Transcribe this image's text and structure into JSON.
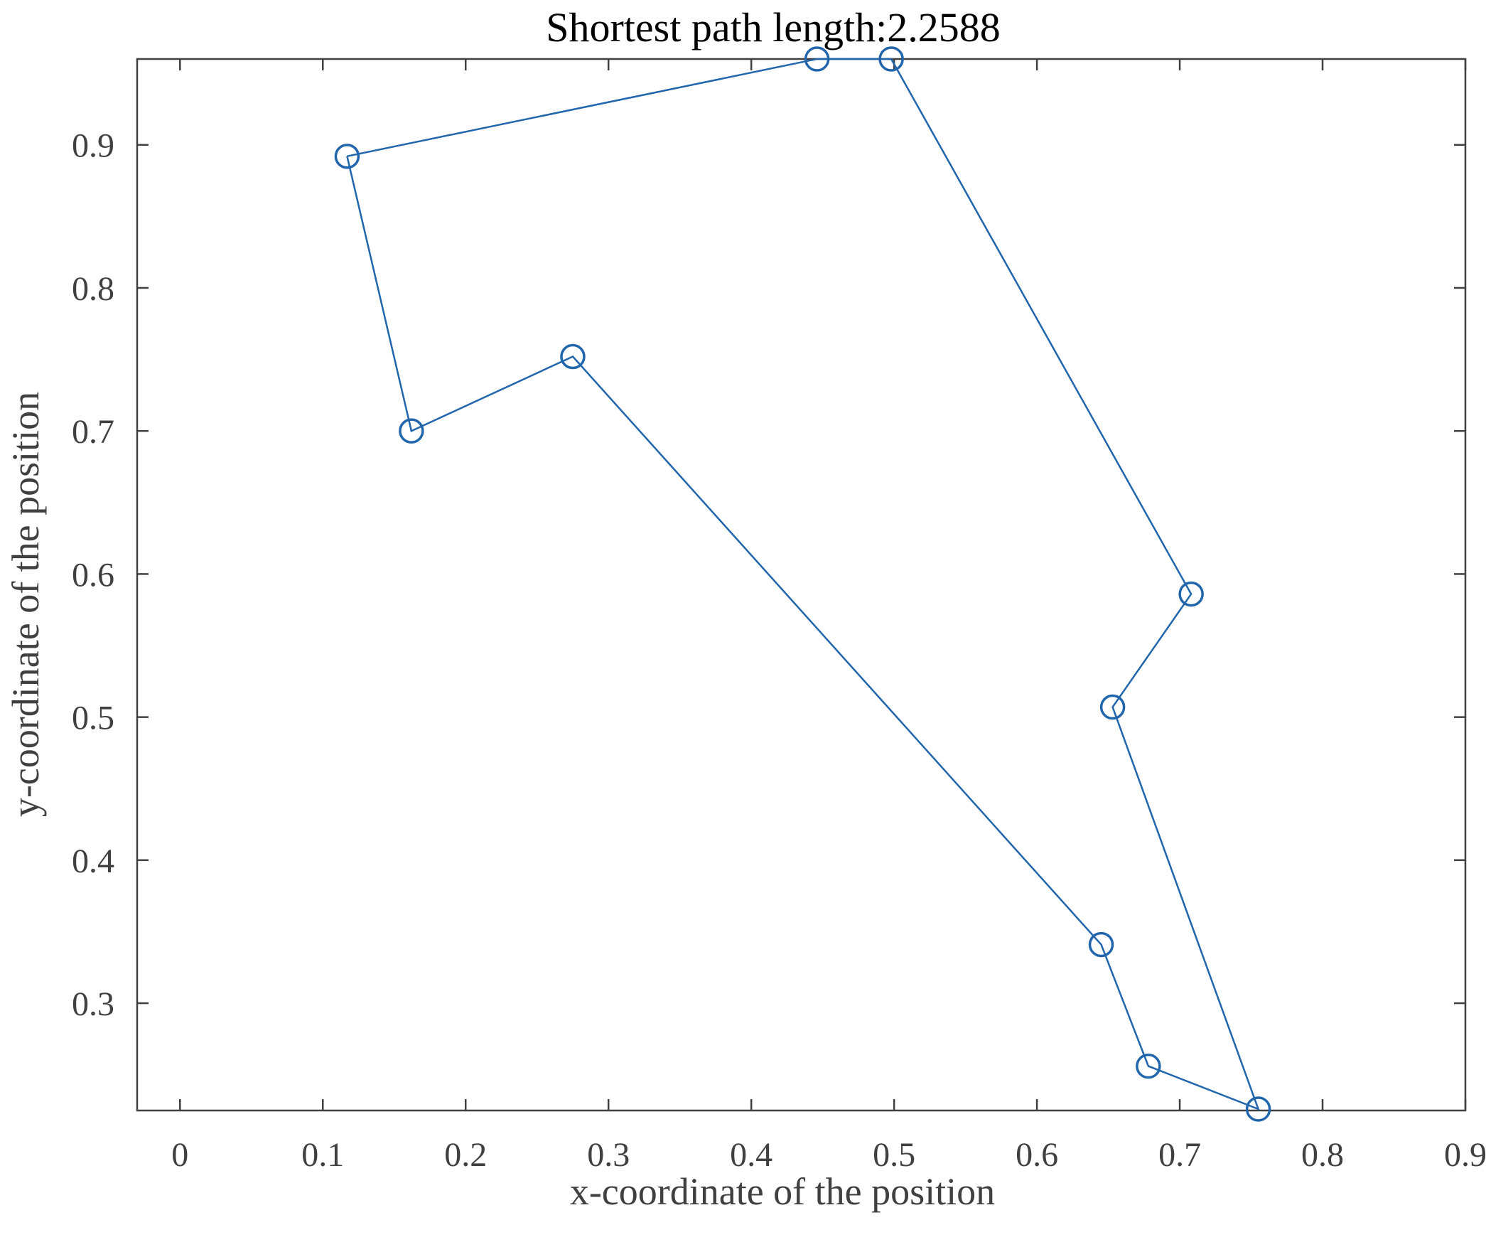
{
  "chart_data": {
    "type": "line",
    "title": "Shortest path length:2.2588",
    "xlabel": "x-coordinate of the position",
    "ylabel": "y-coordinate of the position",
    "xlim": [
      -0.03,
      0.9
    ],
    "ylim": [
      0.225,
      0.96
    ],
    "xticks": [
      0,
      0.1,
      0.2,
      0.3,
      0.4,
      0.5,
      0.6,
      0.7,
      0.8,
      0.9
    ],
    "xtick_labels": [
      "0",
      "0.1",
      "0.2",
      "0.3",
      "0.4",
      "0.5",
      "0.6",
      "0.7",
      "0.8",
      "0.9"
    ],
    "yticks": [
      0.3,
      0.4,
      0.5,
      0.6,
      0.7,
      0.8,
      0.9
    ],
    "ytick_labels": [
      "0.3",
      "0.4",
      "0.5",
      "0.6",
      "0.7",
      "0.8",
      "0.9"
    ],
    "grid": false,
    "marker": "circle",
    "line_color": "#2166ac",
    "axis_color": "#404040",
    "series": [
      {
        "x": [
          0.117,
          0.446,
          0.498,
          0.708,
          0.653,
          0.755,
          0.678,
          0.645,
          0.275,
          0.162,
          0.117
        ],
        "y": [
          0.892,
          0.96,
          0.96,
          0.586,
          0.507,
          0.226,
          0.256,
          0.341,
          0.752,
          0.7,
          0.892
        ]
      }
    ]
  }
}
